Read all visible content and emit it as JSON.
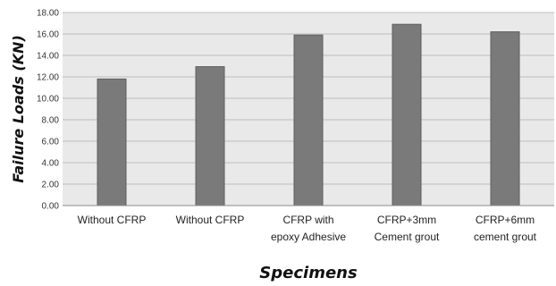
{
  "chart_data": {
    "type": "bar",
    "categories": [
      [
        "Without CFRP"
      ],
      [
        "Without CFRP"
      ],
      [
        "CFRP with",
        "epoxy Adhesive"
      ],
      [
        "CFRP+3mm",
        "Cement grout"
      ],
      [
        "CFRP+6mm",
        "cement grout"
      ]
    ],
    "values": [
      11.8,
      12.95,
      15.9,
      16.9,
      16.2
    ],
    "ylabel": "Failure Loads (KN)",
    "xlabel": "Specimens",
    "ylim": [
      0,
      18
    ],
    "yticks": [
      "0.00",
      "2.00",
      "4.00",
      "6.00",
      "8.00",
      "10.00",
      "12.00",
      "14.00",
      "16.00",
      "18.00"
    ],
    "grid": true,
    "colors": {
      "bar": "#7a7a7a",
      "bar_edge": "#5f5f5f",
      "plot_bg": "#e9e9e9",
      "grid": "#bdbdbd"
    }
  }
}
